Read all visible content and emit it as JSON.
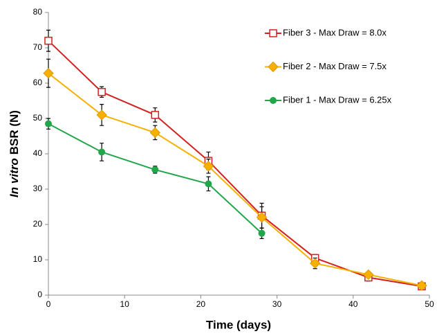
{
  "chart_data": {
    "type": "line",
    "x_label": "Time (days)",
    "y_label": [
      "In vitro",
      "BSR (N)"
    ],
    "x": [
      0,
      7,
      14,
      21,
      28,
      35,
      42,
      49
    ],
    "xlim": [
      0,
      50
    ],
    "xticks": [
      0,
      10,
      20,
      30,
      40,
      50
    ],
    "ylim": [
      0,
      80
    ],
    "yticks": [
      0,
      10,
      20,
      30,
      40,
      50,
      60,
      70,
      80
    ],
    "grid": false,
    "legend": "upper right",
    "series": [
      {
        "name": "Fiber 3 - Max Draw = 8.0x",
        "color": "#d42020",
        "marker": "square",
        "values": [
          72,
          57.5,
          51,
          38,
          22.5,
          10.5,
          5,
          2.5
        ],
        "errors": [
          3,
          1.5,
          2,
          2.5,
          3.5,
          1,
          1,
          0.5
        ]
      },
      {
        "name": "Fiber 2 - Max Draw = 7.5x",
        "color": "#f5b000",
        "marker": "diamond",
        "values": [
          62.8,
          51,
          46,
          36.5,
          22,
          9,
          5.8,
          2.7
        ],
        "errors": [
          4,
          3,
          2,
          2,
          3,
          1.5,
          0.5,
          0.5
        ]
      },
      {
        "name": "Fiber 1 - Max Draw = 6.25x",
        "color": "#22a64a",
        "marker": "circle",
        "values": [
          48.5,
          40.5,
          35.5,
          31.5,
          17.5,
          null,
          null,
          null
        ],
        "errors": [
          1.5,
          2.5,
          1,
          2,
          1.5,
          null,
          null,
          null
        ]
      }
    ]
  }
}
